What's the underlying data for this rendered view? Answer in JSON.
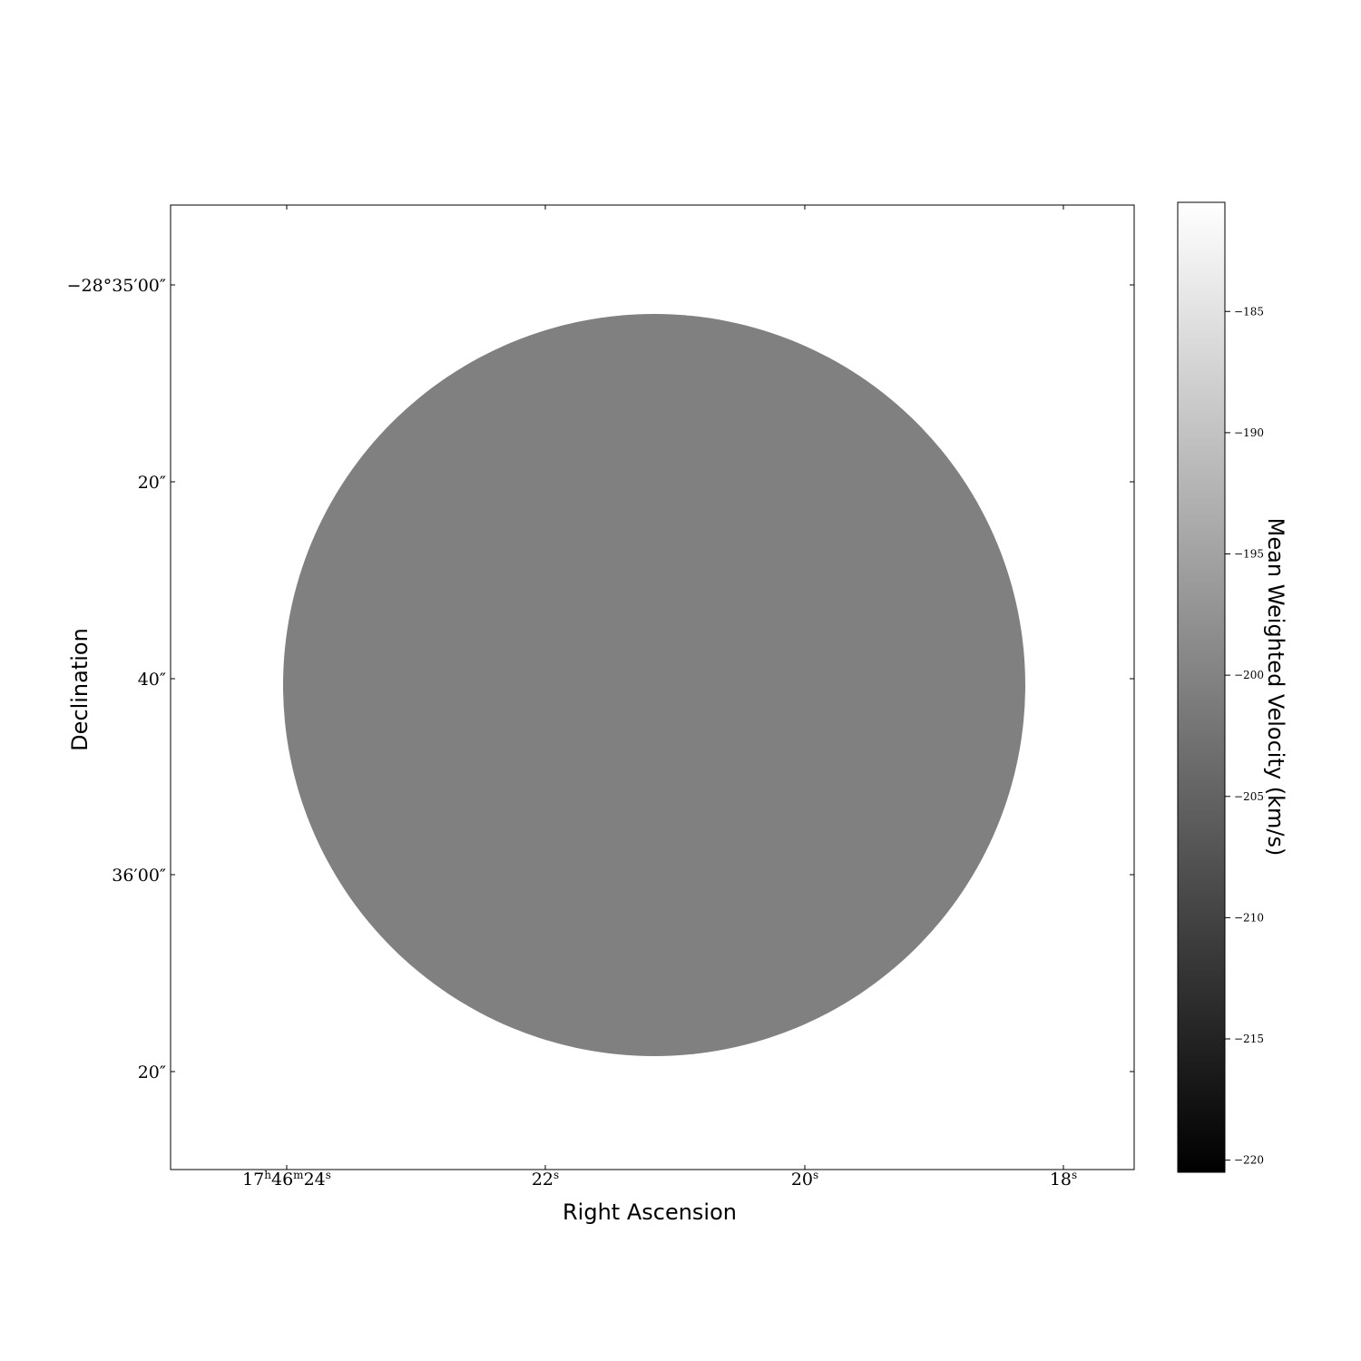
{
  "chart_data": {
    "type": "heatmap",
    "title": "",
    "xlabel": "Right Ascension",
    "ylabel": "Declination",
    "x_ticks": [
      {
        "label": "17h46m24s",
        "parts": [
          [
            "17",
            ""
          ],
          [
            "h",
            "sup"
          ],
          [
            "46",
            ""
          ],
          [
            "m",
            "sup"
          ],
          [
            "24",
            ""
          ],
          [
            "s",
            "sup"
          ]
        ]
      },
      {
        "label": "22s",
        "parts": [
          [
            "22",
            ""
          ],
          [
            "s",
            "sup"
          ]
        ]
      },
      {
        "label": "20s",
        "parts": [
          [
            "20",
            ""
          ],
          [
            "s",
            "sup"
          ]
        ]
      },
      {
        "label": "18s",
        "parts": [
          [
            "18",
            ""
          ],
          [
            "s",
            "sup"
          ]
        ]
      }
    ],
    "y_ticks": [
      "−28°35′00″",
      "20″",
      "40″",
      "36′00″",
      "20″"
    ],
    "colorbar": {
      "label": "Mean Weighted Velocity (km/s)",
      "colormap": "gray",
      "range": [
        -220.5,
        -180.5
      ],
      "ticks": [
        -185,
        -190,
        -195,
        -200,
        -205,
        -210,
        -215,
        -220
      ]
    },
    "image": {
      "description_value": -200,
      "fill_color": "#808080",
      "shape": "disk",
      "background": "#ffffff"
    }
  }
}
